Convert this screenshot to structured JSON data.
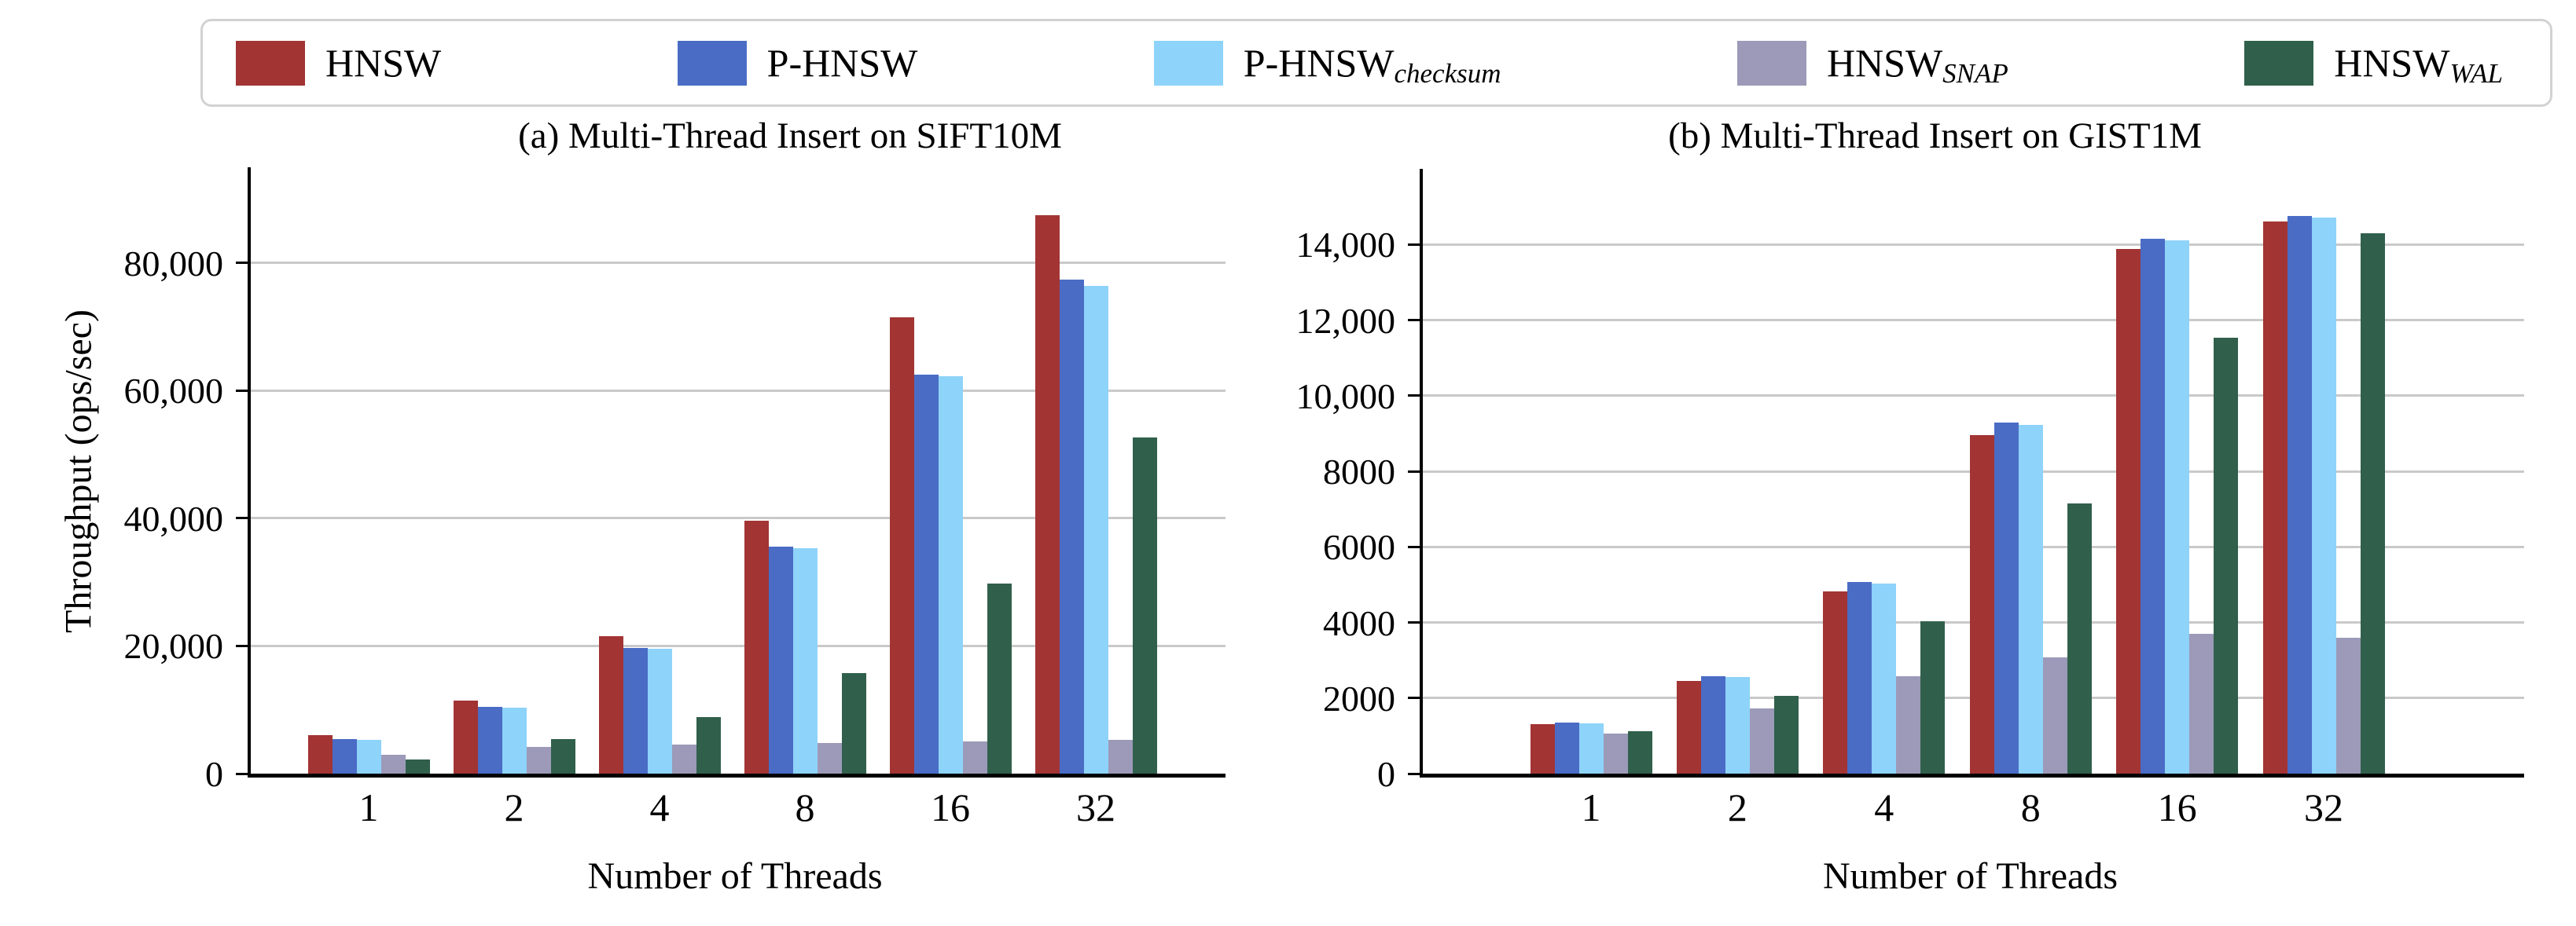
{
  "figure": {
    "background": "#ffffff",
    "gridline_color": "#c9c9c9",
    "axis_color": "#000000"
  },
  "legend": {
    "border_color": "#d2d2d2",
    "position": "top",
    "items": [
      {
        "key": "hnsw",
        "label": "HNSW",
        "sub": "",
        "color": "#A23434"
      },
      {
        "key": "p-hnsw",
        "label": "P-HNSW",
        "sub": "",
        "color": "#4A6CC5"
      },
      {
        "key": "p-hnsw-checksum",
        "label": "P-HNSW",
        "sub": "checksum",
        "color": "#8ED3F9"
      },
      {
        "key": "hnsw-snap",
        "label": "HNSW",
        "sub": "SNAP",
        "color": "#9C9AB8"
      },
      {
        "key": "hnsw-wal",
        "label": "HNSW",
        "sub": "WAL",
        "color": "#30604B"
      }
    ]
  },
  "chart_data": [
    {
      "type": "bar",
      "title": "(a) Multi-Thread Insert on SIFT10M",
      "xlabel": "Number of Threads",
      "ylabel": "Throughput (ops/sec)",
      "categories": [
        "1",
        "2",
        "4",
        "8",
        "16",
        "32"
      ],
      "series": [
        {
          "name": "HNSW",
          "color": "#A23434",
          "values": [
            6000,
            11400,
            21500,
            39600,
            71500,
            87500
          ]
        },
        {
          "name": "P-HNSW",
          "color": "#4A6CC5",
          "values": [
            5400,
            10400,
            19700,
            35600,
            62500,
            77400
          ]
        },
        {
          "name": "P-HNSW_checksum",
          "color": "#8ED3F9",
          "values": [
            5350,
            10300,
            19600,
            35300,
            62300,
            76400
          ]
        },
        {
          "name": "HNSW_SNAP",
          "color": "#9C9AB8",
          "values": [
            3000,
            4200,
            4500,
            4800,
            5000,
            5300
          ]
        },
        {
          "name": "HNSW_WAL",
          "color": "#30604B",
          "values": [
            2250,
            5400,
            8800,
            15800,
            29800,
            52700
          ]
        }
      ],
      "ylim": [
        0,
        95000
      ],
      "yticks": [
        {
          "value": 0,
          "label": "0"
        },
        {
          "value": 20000,
          "label": "20,000"
        },
        {
          "value": 40000,
          "label": "40,000"
        },
        {
          "value": 60000,
          "label": "60,000"
        },
        {
          "value": 80000,
          "label": "80,000"
        }
      ],
      "grid": true,
      "legend_position": "top"
    },
    {
      "type": "bar",
      "title": "(b) Multi-Thread Insert on GIST1M",
      "xlabel": "Number of Threads",
      "ylabel": "",
      "categories": [
        "1",
        "2",
        "4",
        "8",
        "16",
        "32"
      ],
      "series": [
        {
          "name": "HNSW",
          "color": "#A23434",
          "values": [
            1300,
            2460,
            4820,
            8950,
            13880,
            14610
          ]
        },
        {
          "name": "P-HNSW",
          "color": "#4A6CC5",
          "values": [
            1360,
            2570,
            5080,
            9280,
            14150,
            14750
          ]
        },
        {
          "name": "P-HNSW_checksum",
          "color": "#8ED3F9",
          "values": [
            1340,
            2560,
            5020,
            9230,
            14100,
            14720
          ]
        },
        {
          "name": "HNSW_SNAP",
          "color": "#9C9AB8",
          "values": [
            1060,
            1720,
            2580,
            3070,
            3700,
            3600
          ]
        },
        {
          "name": "HNSW_WAL",
          "color": "#30604B",
          "values": [
            1120,
            2050,
            4030,
            7150,
            11530,
            14290
          ]
        }
      ],
      "ylim": [
        0,
        16000
      ],
      "yticks": [
        {
          "value": 0,
          "label": "0"
        },
        {
          "value": 2000,
          "label": "2000"
        },
        {
          "value": 4000,
          "label": "4000"
        },
        {
          "value": 6000,
          "label": "6000"
        },
        {
          "value": 8000,
          "label": "8000"
        },
        {
          "value": 10000,
          "label": "10,000"
        },
        {
          "value": 12000,
          "label": "12,000"
        },
        {
          "value": 14000,
          "label": "14,000"
        }
      ],
      "grid": true,
      "legend_position": "top"
    }
  ]
}
